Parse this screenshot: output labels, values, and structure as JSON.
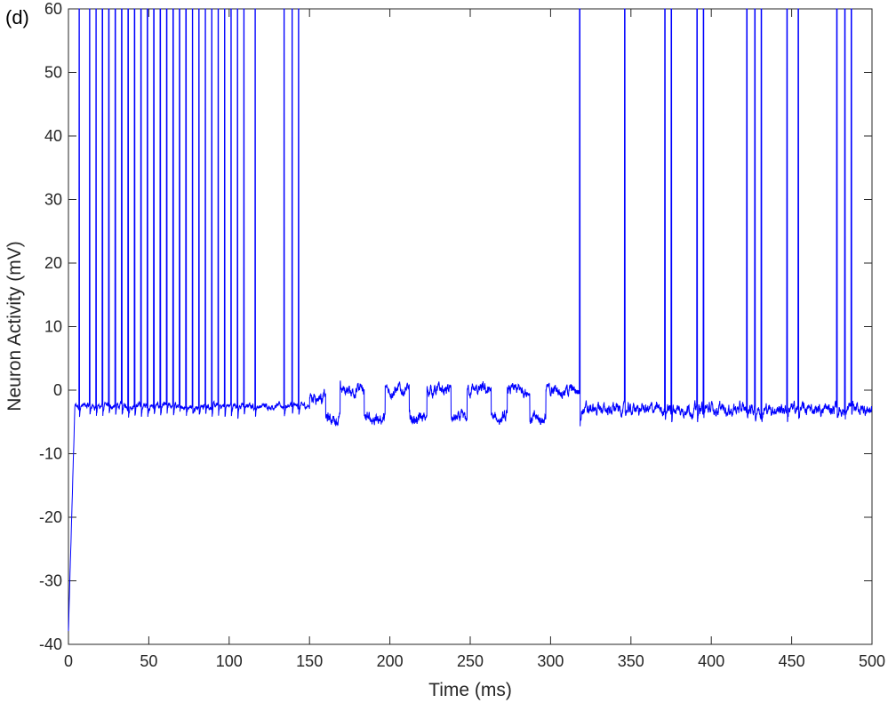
{
  "panel_label": "(d)",
  "chart_data": {
    "type": "line",
    "title": "",
    "xlabel": "Time (ms)",
    "ylabel": "Neuron Activity (mV)",
    "xlim": [
      0,
      500
    ],
    "ylim": [
      -40,
      60
    ],
    "xticks": [
      0,
      50,
      100,
      150,
      200,
      250,
      300,
      350,
      400,
      450,
      500
    ],
    "yticks": [
      -40,
      -30,
      -20,
      -10,
      0,
      10,
      20,
      30,
      40,
      50,
      60
    ],
    "grid": false,
    "legend": "none",
    "series": [
      {
        "color": "#0000ff",
        "initial_value": -38,
        "baseline_phase1": -2.5,
        "spike_times": [
          6.5,
          13,
          17,
          21,
          25,
          29,
          33,
          37,
          41,
          45,
          49,
          53,
          57,
          61,
          65,
          69,
          73,
          77,
          81,
          85,
          89,
          93,
          97,
          101,
          105,
          109,
          116,
          134,
          139,
          143,
          318,
          346,
          371,
          375,
          391,
          395,
          422,
          427,
          431,
          447,
          454,
          478,
          483,
          487
        ],
        "plateau_segments": [
          [
            150,
            160,
            -1
          ],
          [
            160,
            169,
            -4.5
          ],
          [
            169,
            184,
            0
          ],
          [
            184,
            197,
            -4.5
          ],
          [
            197,
            212,
            0
          ],
          [
            212,
            223,
            -4.5
          ],
          [
            223,
            238,
            0
          ],
          [
            238,
            248,
            -4.5
          ],
          [
            248,
            263,
            0
          ],
          [
            263,
            273,
            -4.5
          ],
          [
            273,
            287,
            0
          ],
          [
            287,
            297,
            -4.5
          ],
          [
            297,
            318,
            0
          ],
          [
            318,
            500,
            -3
          ]
        ]
      }
    ]
  }
}
